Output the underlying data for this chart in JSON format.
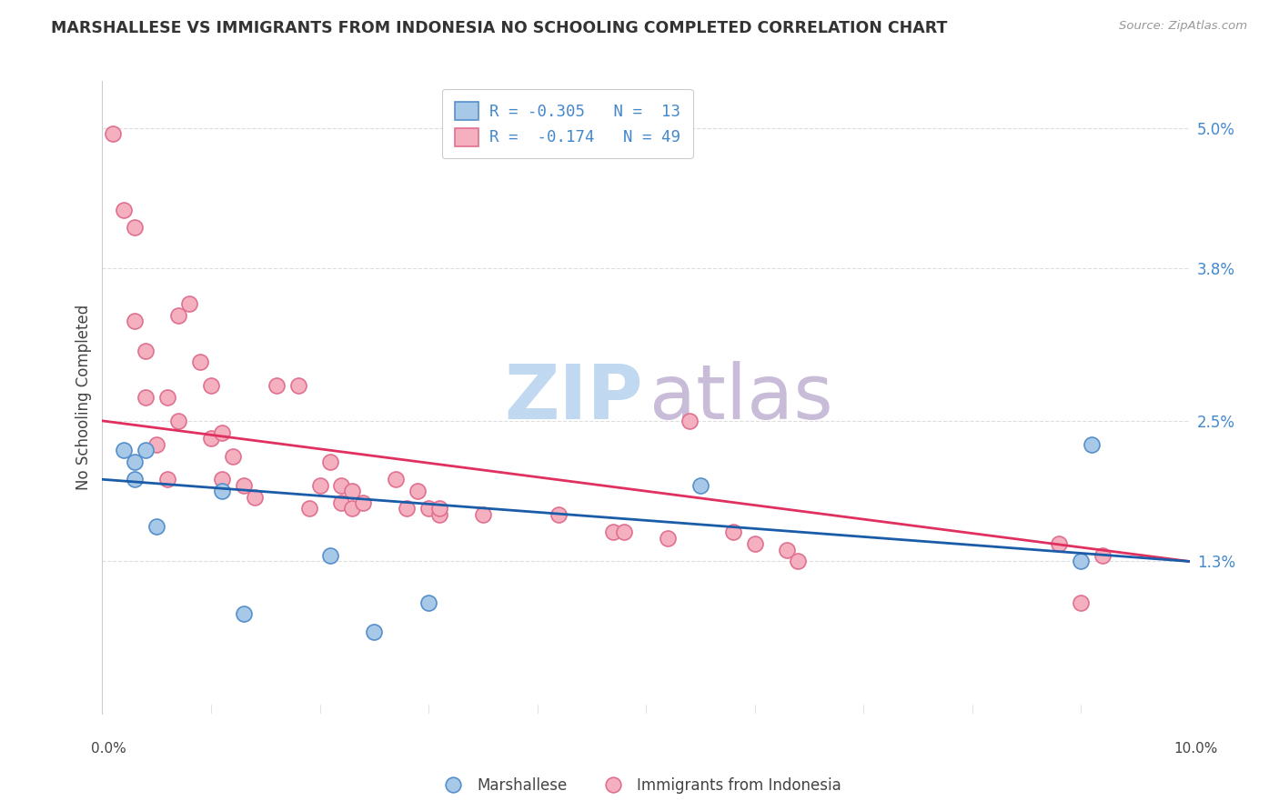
{
  "title": "MARSHALLESE VS IMMIGRANTS FROM INDONESIA NO SCHOOLING COMPLETED CORRELATION CHART",
  "source": "Source: ZipAtlas.com",
  "ylabel": "No Schooling Completed",
  "xlim": [
    0.0,
    0.1
  ],
  "ylim": [
    0.0,
    0.054
  ],
  "ytick_vals": [
    0.013,
    0.025,
    0.038,
    0.05
  ],
  "ytick_labels": [
    "1.3%",
    "2.5%",
    "3.8%",
    "5.0%"
  ],
  "blue_x": [
    0.002,
    0.003,
    0.003,
    0.004,
    0.005,
    0.011,
    0.013,
    0.021,
    0.025,
    0.03,
    0.055,
    0.09,
    0.091
  ],
  "blue_y": [
    0.0225,
    0.0215,
    0.02,
    0.0225,
    0.016,
    0.019,
    0.0085,
    0.0135,
    0.007,
    0.0095,
    0.0195,
    0.013,
    0.023
  ],
  "pink_x": [
    0.001,
    0.002,
    0.003,
    0.003,
    0.004,
    0.004,
    0.005,
    0.006,
    0.006,
    0.007,
    0.007,
    0.008,
    0.009,
    0.01,
    0.01,
    0.011,
    0.011,
    0.012,
    0.013,
    0.014,
    0.016,
    0.018,
    0.019,
    0.02,
    0.021,
    0.022,
    0.022,
    0.023,
    0.023,
    0.024,
    0.027,
    0.028,
    0.029,
    0.03,
    0.031,
    0.031,
    0.035,
    0.042,
    0.047,
    0.048,
    0.052,
    0.054,
    0.058,
    0.06,
    0.063,
    0.064,
    0.088,
    0.09,
    0.092
  ],
  "pink_y": [
    0.0495,
    0.043,
    0.0415,
    0.0335,
    0.031,
    0.027,
    0.023,
    0.027,
    0.02,
    0.034,
    0.025,
    0.035,
    0.03,
    0.028,
    0.0235,
    0.024,
    0.02,
    0.022,
    0.0195,
    0.0185,
    0.028,
    0.028,
    0.0175,
    0.0195,
    0.0215,
    0.0195,
    0.018,
    0.019,
    0.0175,
    0.018,
    0.02,
    0.0175,
    0.019,
    0.0175,
    0.017,
    0.0175,
    0.017,
    0.017,
    0.0155,
    0.0155,
    0.015,
    0.025,
    0.0155,
    0.0145,
    0.014,
    0.013,
    0.0145,
    0.0095,
    0.0135
  ],
  "blue_fill": "#a8c8e8",
  "blue_edge": "#5590cc",
  "pink_fill": "#f5b0c0",
  "pink_edge": "#e07090",
  "blue_line_color": "#1a5ca8",
  "pink_line_color": "#e03060",
  "bg_color": "#ffffff",
  "grid_color": "#dddddd",
  "title_color": "#333333",
  "label_color": "#444444",
  "right_tick_color": "#4488cc",
  "watermark_zip_color": "#c0d8f0",
  "watermark_atlas_color": "#c8bcd8",
  "legend_line1": "R = -0.305   N =  13",
  "legend_line2": "R =  -0.174   N = 49"
}
